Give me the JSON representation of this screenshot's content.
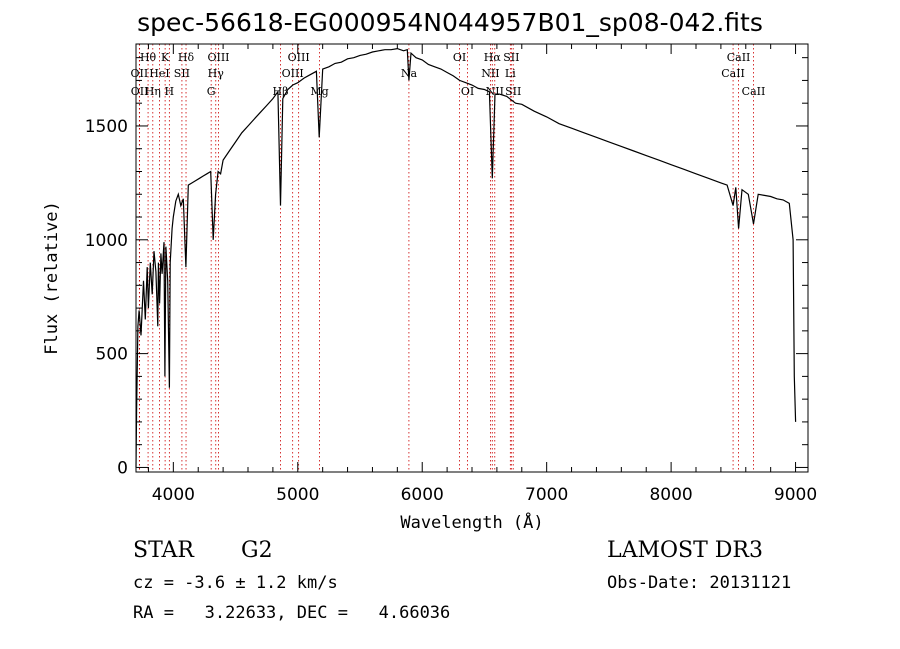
{
  "chart_data": {
    "type": "line",
    "title": "spec-56618-EG000954N044957B01_sp08-042.fits",
    "xlabel": "Wavelength (Å)",
    "ylabel": "Flux (relative)",
    "xlim": [
      3700,
      9100
    ],
    "ylim": [
      -20,
      1860
    ],
    "x_ticks": [
      4000,
      5000,
      6000,
      7000,
      8000,
      9000
    ],
    "y_ticks": [
      0,
      500,
      1000,
      1500
    ],
    "series": [
      {
        "name": "spectrum",
        "x": [
          3700,
          3705,
          3715,
          3725,
          3740,
          3760,
          3775,
          3790,
          3800,
          3815,
          3830,
          3845,
          3860,
          3875,
          3880,
          3890,
          3900,
          3910,
          3925,
          3932,
          3940,
          3955,
          3968,
          3975,
          3990,
          4000,
          4020,
          4040,
          4060,
          4080,
          4101,
          4120,
          4150,
          4180,
          4210,
          4240,
          4270,
          4300,
          4320,
          4340,
          4360,
          4380,
          4400,
          4450,
          4500,
          4550,
          4600,
          4650,
          4700,
          4750,
          4800,
          4840,
          4861,
          4880,
          4920,
          4960,
          5000,
          5050,
          5100,
          5150,
          5172,
          5200,
          5250,
          5300,
          5350,
          5400,
          5450,
          5500,
          5550,
          5600,
          5650,
          5700,
          5750,
          5800,
          5850,
          5880,
          5893,
          5910,
          5950,
          6000,
          6050,
          6100,
          6150,
          6200,
          6250,
          6300,
          6350,
          6400,
          6450,
          6500,
          6540,
          6563,
          6585,
          6620,
          6680,
          6750,
          6800,
          6900,
          7000,
          7100,
          7200,
          7300,
          7400,
          7500,
          7600,
          7700,
          7800,
          7900,
          8000,
          8100,
          8200,
          8300,
          8400,
          8450,
          8498,
          8520,
          8542,
          8570,
          8620,
          8662,
          8700,
          8750,
          8800,
          8850,
          8900,
          8950,
          8980,
          8990,
          9000
        ],
        "values": [
          0,
          250,
          620,
          690,
          580,
          820,
          650,
          880,
          700,
          900,
          760,
          950,
          860,
          620,
          900,
          720,
          940,
          850,
          990,
          400,
          970,
          820,
          350,
          900,
          1050,
          1100,
          1170,
          1200,
          1150,
          1180,
          880,
          1240,
          1250,
          1260,
          1270,
          1280,
          1290,
          1300,
          1000,
          1200,
          1300,
          1290,
          1350,
          1390,
          1430,
          1470,
          1500,
          1530,
          1560,
          1590,
          1620,
          1650,
          1150,
          1620,
          1660,
          1680,
          1690,
          1710,
          1725,
          1740,
          1450,
          1750,
          1760,
          1775,
          1780,
          1795,
          1800,
          1810,
          1815,
          1825,
          1830,
          1835,
          1835,
          1840,
          1830,
          1835,
          1700,
          1820,
          1800,
          1790,
          1770,
          1760,
          1750,
          1735,
          1720,
          1700,
          1690,
          1680,
          1665,
          1660,
          1650,
          1270,
          1640,
          1640,
          1630,
          1600,
          1595,
          1565,
          1540,
          1510,
          1490,
          1470,
          1450,
          1430,
          1410,
          1390,
          1370,
          1350,
          1330,
          1310,
          1290,
          1270,
          1250,
          1240,
          1150,
          1230,
          1050,
          1220,
          1200,
          1070,
          1200,
          1195,
          1190,
          1180,
          1175,
          1160,
          1000,
          400,
          200
        ]
      }
    ],
    "line_markers": [
      {
        "wl": 3727,
        "label": "OII",
        "row": 2
      },
      {
        "wl": 3729,
        "label": "OII",
        "row": 3
      },
      {
        "wl": 3797,
        "label": "Hθ",
        "row": 1
      },
      {
        "wl": 3835,
        "label": "Hη",
        "row": 3
      },
      {
        "wl": 3889,
        "label": "HeI",
        "row": 2
      },
      {
        "wl": 3934,
        "label": "K",
        "row": 1
      },
      {
        "wl": 3968,
        "label": "H",
        "row": 3
      },
      {
        "wl": 4069,
        "label": "SII",
        "row": 2
      },
      {
        "wl": 4102,
        "label": "Hδ",
        "row": 1
      },
      {
        "wl": 4304,
        "label": "G",
        "row": 3
      },
      {
        "wl": 4341,
        "label": "Hγ",
        "row": 2
      },
      {
        "wl": 4363,
        "label": "OIII",
        "row": 1
      },
      {
        "wl": 4861,
        "label": "Hβ",
        "row": 3
      },
      {
        "wl": 4959,
        "label": "OIII",
        "row": 2
      },
      {
        "wl": 5007,
        "label": "OIII",
        "row": 1
      },
      {
        "wl": 5175,
        "label": "Mg",
        "row": 3
      },
      {
        "wl": 5893,
        "label": "Na",
        "row": 2
      },
      {
        "wl": 6300,
        "label": "OI",
        "row": 1
      },
      {
        "wl": 6364,
        "label": "OI",
        "row": 3
      },
      {
        "wl": 6548,
        "label": "NII",
        "row": 2
      },
      {
        "wl": 6563,
        "label": "Hα",
        "row": 1
      },
      {
        "wl": 6583,
        "label": "NII",
        "row": 3
      },
      {
        "wl": 6708,
        "label": "Li",
        "row": 2
      },
      {
        "wl": 6716,
        "label": "SII",
        "row": 1
      },
      {
        "wl": 6731,
        "label": "SII",
        "row": 3
      },
      {
        "wl": 8498,
        "label": "CaII",
        "row": 2
      },
      {
        "wl": 8542,
        "label": "CaII",
        "row": 1
      },
      {
        "wl": 8662,
        "label": "CaII",
        "row": 3
      }
    ]
  },
  "info": {
    "object_class": "STAR",
    "subclass": "G2",
    "survey": "LAMOST DR3",
    "cz": "cz = -3.6 ± 1.2 km/s",
    "obs_date": "Obs-Date: 20131121",
    "coords": "RA =   3.22633, DEC =   4.66036"
  }
}
